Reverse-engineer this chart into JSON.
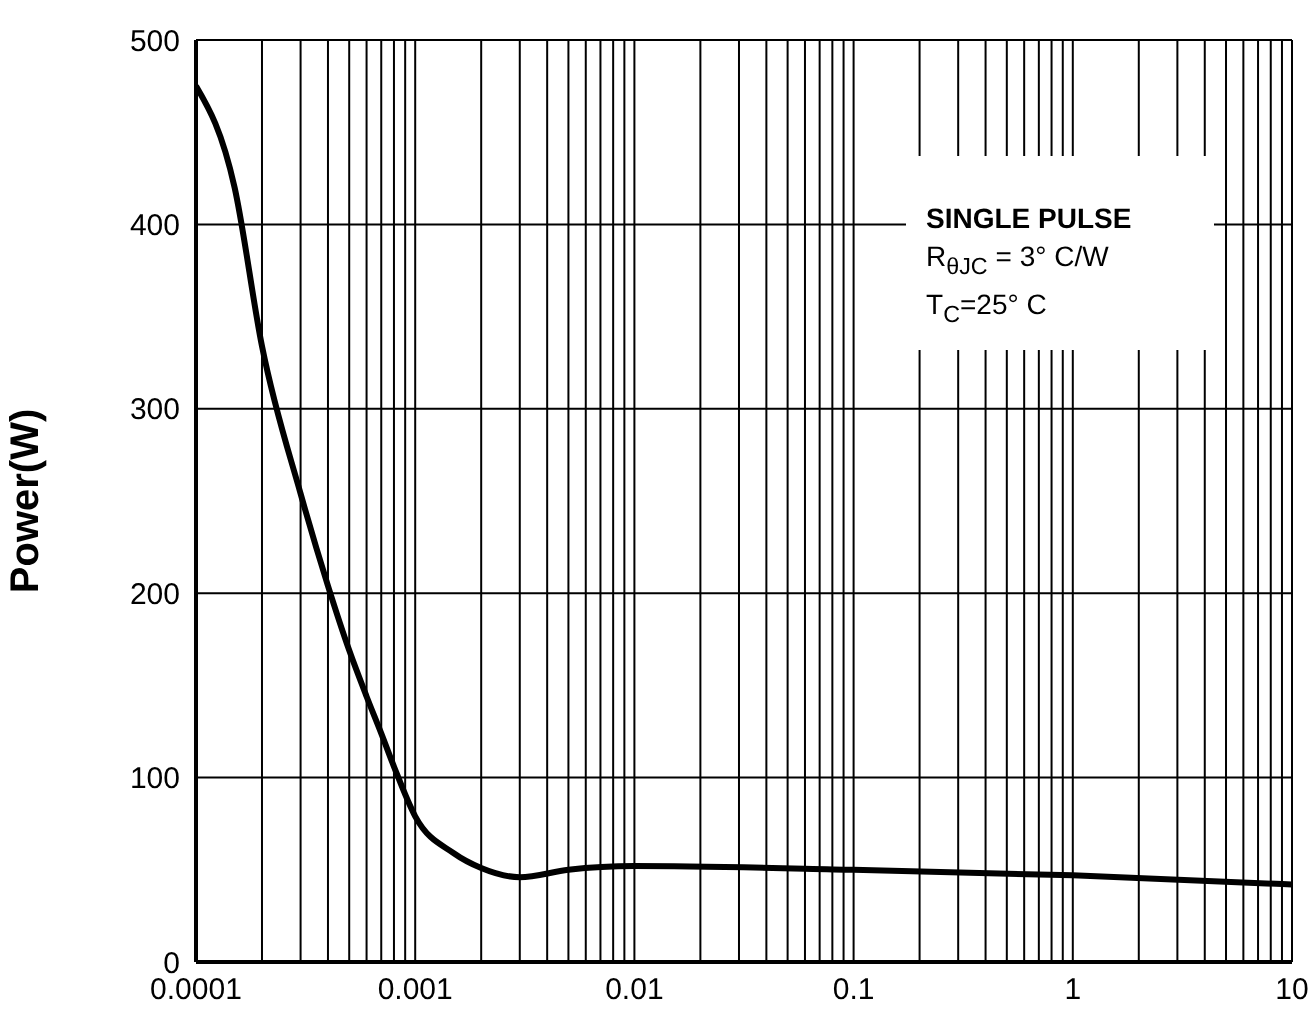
{
  "chart_data": {
    "type": "line",
    "ylabel": "Power(W)",
    "annotations": [
      "SINGLE PULSE",
      "R$_{θJC}$ = 3° C/W",
      "T$_{C}$=25° C"
    ],
    "x": [
      0.0001,
      0.00015,
      0.0002,
      0.0003,
      0.0004,
      0.0005,
      0.0006,
      0.0007,
      0.0008,
      0.001,
      0.0015,
      0.002,
      0.003,
      0.005,
      0.01,
      0.1,
      1,
      10
    ],
    "series": [
      {
        "color": "#000000",
        "values": [
          475,
          420,
          334,
          254,
          204,
          169,
          144,
          124,
          106,
          79,
          59,
          51,
          46,
          50,
          52,
          50,
          47,
          42
        ]
      }
    ],
    "xlim": [
      0.0001,
      10
    ],
    "ylim": [
      0,
      500
    ],
    "xticks": [
      0.0001,
      {
        "value": 0.0002,
        "label": null
      },
      {
        "value": 0.0003,
        "label": null
      },
      {
        "value": 0.0004,
        "label": null
      },
      {
        "value": 0.0005,
        "label": null
      },
      {
        "value": 0.0006,
        "label": null
      },
      {
        "value": 0.0007,
        "label": null
      },
      {
        "value": 0.0008,
        "label": null
      },
      {
        "value": 0.0009,
        "label": null
      },
      0.001,
      {
        "value": 0.002,
        "label": null
      },
      {
        "value": 0.003,
        "label": null
      },
      {
        "value": 0.004,
        "label": null
      },
      {
        "value": 0.005,
        "label": null
      },
      {
        "value": 0.006,
        "label": null
      },
      {
        "value": 0.007,
        "label": null
      },
      {
        "value": 0.008,
        "label": null
      },
      {
        "value": 0.009,
        "label": null
      },
      0.01,
      {
        "value": 0.02,
        "label": null
      },
      {
        "value": 0.03,
        "label": null
      },
      {
        "value": 0.04,
        "label": null
      },
      {
        "value": 0.05,
        "label": null
      },
      {
        "value": 0.06,
        "label": null
      },
      {
        "value": 0.07,
        "label": null
      },
      {
        "value": 0.08,
        "label": null
      },
      {
        "value": 0.09,
        "label": null
      },
      0.1,
      {
        "value": 0.2,
        "label": null
      },
      {
        "value": 0.3,
        "label": null
      },
      {
        "value": 0.4,
        "label": null
      },
      {
        "value": 0.5,
        "label": null
      },
      {
        "value": 0.6,
        "label": null
      },
      {
        "value": 0.7,
        "label": null
      },
      {
        "value": 0.8,
        "label": null
      },
      {
        "value": 0.9,
        "label": null
      },
      1,
      {
        "value": 2,
        "label": null
      },
      {
        "value": 3,
        "label": null
      },
      {
        "value": 4,
        "label": null
      },
      {
        "value": 5,
        "label": null
      },
      {
        "value": 6,
        "label": null
      },
      {
        "value": 7,
        "label": null
      },
      {
        "value": 8,
        "label": null
      },
      {
        "value": 9,
        "label": null
      },
      10
    ],
    "yticks": [
      0,
      100,
      200,
      300,
      400,
      500
    ],
    "log": "x",
    "grid": true,
    "marker": "none",
    "line_style": "solid"
  }
}
